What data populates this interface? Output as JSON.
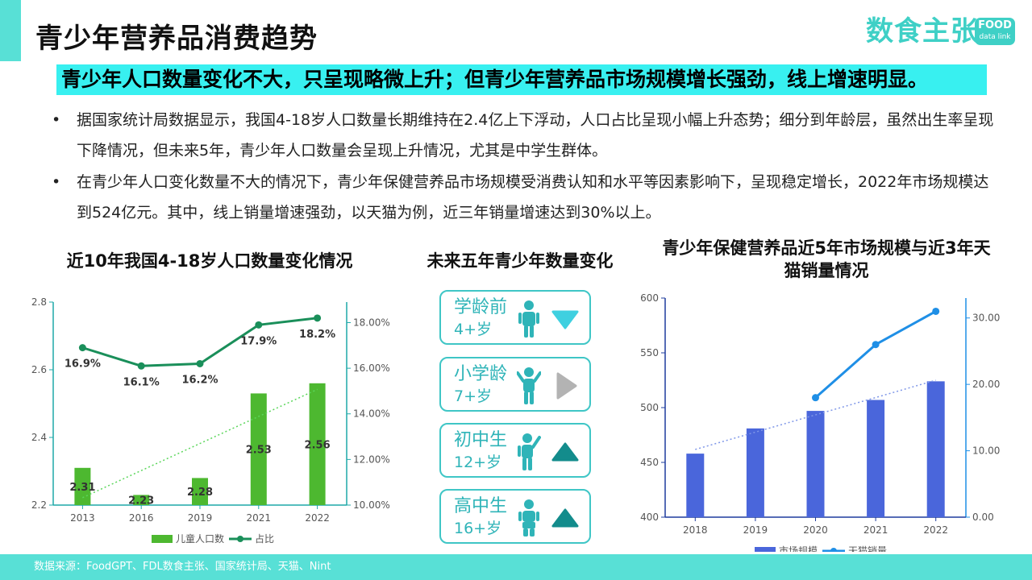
{
  "title": "青少年营养品消费趋势",
  "logo": {
    "text": "数食主张",
    "badge_top": "FOOD",
    "badge_bottom": "data link"
  },
  "headline": "青少年人口数量变化不大，只呈现略微上升；但青少年营养品市场规模增长强劲，线上增速明显。",
  "bullets": [
    {
      "dot": "•",
      "text": "据国家统计局数据显示，我国4-18岁人口数量长期维持在2.4亿上下浮动，人口占比呈现小幅上升态势；细分到年龄层，虽然出生率呈现下降情况，但未来5年，青少年人口数量会呈现上升情况，尤其是中学生群体。"
    },
    {
      "dot": "•",
      "text": "在青少年人口变化数量不大的情况下，青少年保健营养品市场规模受消费认知和水平等因素影响下，呈现稳定增长，2022年市场规模达到524亿元。其中，线上销量增速强劲，以天猫为例，近三年销量增速达到30%以上。"
    }
  ],
  "chart_titles": {
    "population": "近10年我国4-18岁人口数量变化情况",
    "future": "未来五年青少年数量变化",
    "market": "青少年保健营养品近5年市场规模与近3年天猫销量情况"
  },
  "chart_data": [
    {
      "type": "bar",
      "categories": [
        "2013",
        "2016",
        "2019",
        "2021",
        "2022"
      ],
      "series": [
        {
          "name": "儿童人口数",
          "kind": "bar",
          "axis": "left",
          "values": [
            2.31,
            2.23,
            2.28,
            2.53,
            2.56
          ],
          "labels": [
            "2.31",
            "2.23",
            "2.28",
            "2.53",
            "2.56"
          ],
          "color": "#4db830"
        },
        {
          "name": "占比",
          "kind": "line",
          "axis": "right",
          "values": [
            16.9,
            16.1,
            16.2,
            17.9,
            18.2
          ],
          "labels": [
            "16.9%",
            "16.1%",
            "16.2%",
            "17.9%",
            "18.2%"
          ],
          "color": "#1a8f5a"
        }
      ],
      "trendline": {
        "of": "儿童人口数",
        "style": "dotted",
        "color": "#5bd65b"
      },
      "ylim_left": [
        2.2,
        2.8
      ],
      "yticks_left": [
        "2.2",
        "2.4",
        "2.6",
        "2.8"
      ],
      "ylim_right": [
        10,
        18.9
      ],
      "yticks_right": [
        "10.00%",
        "12.00%",
        "14.00%",
        "16.00%",
        "18.00%"
      ],
      "legend": "bottom",
      "grid": false
    },
    {
      "type": "bar",
      "categories": [
        "2018",
        "2019",
        "2020",
        "2021",
        "2022"
      ],
      "series": [
        {
          "name": "市场规模",
          "kind": "bar",
          "axis": "left",
          "values": [
            458,
            481,
            497,
            507,
            524
          ],
          "color": "#4a66db"
        },
        {
          "name": "天猫销量",
          "kind": "line",
          "axis": "right",
          "values": [
            null,
            null,
            18,
            26,
            31
          ],
          "color": "#1f8fe6"
        }
      ],
      "trendline": {
        "of": "市场规模",
        "style": "dotted",
        "color": "#7f97e8"
      },
      "ylim_left": [
        400,
        600
      ],
      "yticks_left": [
        "400",
        "450",
        "500",
        "550",
        "600"
      ],
      "ylim_right": [
        0,
        33
      ],
      "yticks_right": [
        "0.00",
        "10.00",
        "20.00",
        "30.00"
      ],
      "legend": "bottom",
      "grid": false
    }
  ],
  "future_groups": [
    {
      "label": "学龄前",
      "age": "4+岁",
      "trend": "down",
      "arrow_color": "#3fd0e0"
    },
    {
      "label": "小学龄",
      "age": "7+岁",
      "trend": "flat",
      "arrow_color": "#b3b3b3"
    },
    {
      "label": "初中生",
      "age": "12+岁",
      "trend": "up",
      "arrow_color": "#138c8c"
    },
    {
      "label": "高中生",
      "age": "16+岁",
      "trend": "up",
      "arrow_color": "#138c8c"
    }
  ],
  "colors": {
    "accent": "#58e0d6",
    "headline_bg": "#38f0f0",
    "teal_text": "#2fb4b8"
  },
  "footer": "数据来源：FoodGPT、FDL数食主张、国家统计局、天猫、Nint"
}
